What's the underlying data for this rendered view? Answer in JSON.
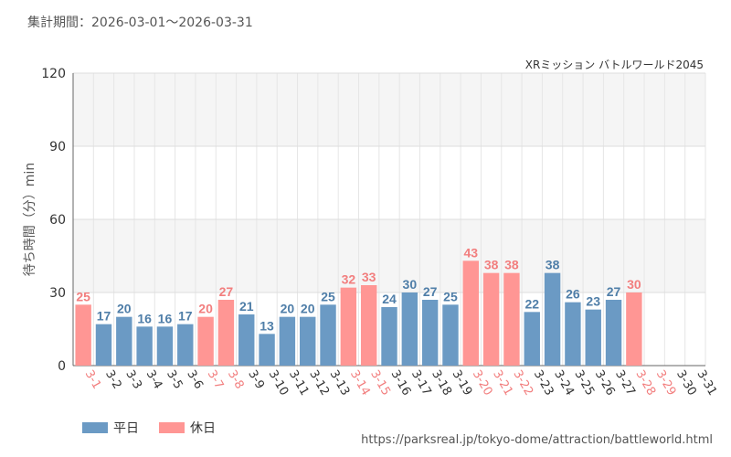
{
  "period_text": "集計期間：2026-03-01〜2026-03-31",
  "source_url": "https://parksreal.jp/tokyo-dome/attraction/battleworld.html",
  "colors": {
    "weekday": "#6b9ac4",
    "holiday": "#ff9694",
    "holiday_label": "#f27e7e",
    "weekday_label": "#4f7ea8"
  },
  "legend": [
    {
      "label": "平日",
      "color": "#6b9ac4"
    },
    {
      "label": "休日",
      "color": "#ff9694"
    }
  ],
  "chart_data": {
    "type": "bar",
    "title": "XRミッション バトルワールド2045",
    "ylabel": "待ち時間（分）min",
    "ylim": [
      0,
      120
    ],
    "yticks": [
      0,
      30,
      60,
      90,
      120
    ],
    "grid": true,
    "legend_position": "bottom-left",
    "categories": [
      "3-1",
      "3-2",
      "3-3",
      "3-4",
      "3-5",
      "3-6",
      "3-7",
      "3-8",
      "3-9",
      "3-10",
      "3-11",
      "3-12",
      "3-13",
      "3-14",
      "3-15",
      "3-16",
      "3-17",
      "3-18",
      "3-19",
      "3-20",
      "3-21",
      "3-22",
      "3-23",
      "3-24",
      "3-25",
      "3-26",
      "3-27",
      "3-28",
      "3-29",
      "3-30",
      "3-31"
    ],
    "values": [
      25,
      17,
      20,
      16,
      16,
      17,
      20,
      27,
      21,
      13,
      20,
      20,
      25,
      32,
      33,
      24,
      30,
      27,
      25,
      43,
      38,
      38,
      22,
      38,
      26,
      23,
      27,
      30,
      null,
      null,
      null
    ],
    "day_type": [
      "休日",
      "平日",
      "平日",
      "平日",
      "平日",
      "平日",
      "休日",
      "休日",
      "平日",
      "平日",
      "平日",
      "平日",
      "平日",
      "休日",
      "休日",
      "平日",
      "平日",
      "平日",
      "平日",
      "休日",
      "休日",
      "休日",
      "平日",
      "平日",
      "平日",
      "平日",
      "平日",
      "休日",
      "休日",
      "平日",
      "平日"
    ]
  }
}
